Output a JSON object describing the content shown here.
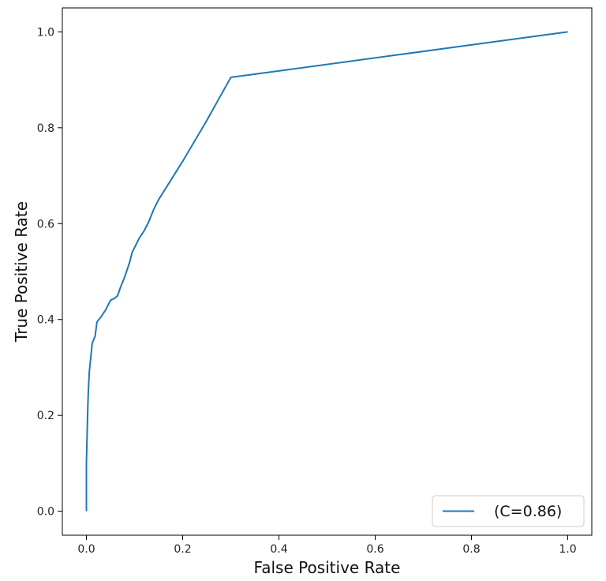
{
  "chart_data": {
    "type": "line",
    "xlabel": "False Positive Rate",
    "ylabel": "True Positive Rate",
    "xlim": [
      -0.05,
      1.05
    ],
    "ylim": [
      -0.05,
      1.05
    ],
    "x_ticks": [
      0.0,
      0.2,
      0.4,
      0.6,
      0.8,
      1.0
    ],
    "y_ticks": [
      0.0,
      0.2,
      0.4,
      0.6,
      0.8,
      1.0
    ],
    "x_tick_labels": [
      "0.0",
      "0.2",
      "0.4",
      "0.6",
      "0.8",
      "1.0"
    ],
    "y_tick_labels": [
      "0.0",
      "0.2",
      "0.4",
      "0.6",
      "0.8",
      "1.0"
    ],
    "grid": false,
    "legend_position": "lower-right",
    "series": [
      {
        "name": "(C=0.86)",
        "color": "#1f77b4",
        "x": [
          0.0,
          0.0,
          0.001,
          0.002,
          0.003,
          0.004,
          0.005,
          0.006,
          0.008,
          0.01,
          0.012,
          0.014,
          0.016,
          0.018,
          0.02,
          0.022,
          0.03,
          0.04,
          0.05,
          0.06,
          0.065,
          0.07,
          0.08,
          0.09,
          0.095,
          0.1,
          0.11,
          0.12,
          0.13,
          0.14,
          0.15,
          0.2,
          0.25,
          0.3,
          1.0
        ],
        "y": [
          0.0,
          0.1,
          0.14,
          0.18,
          0.22,
          0.25,
          0.27,
          0.29,
          0.31,
          0.33,
          0.35,
          0.355,
          0.36,
          0.365,
          0.38,
          0.395,
          0.405,
          0.42,
          0.44,
          0.445,
          0.45,
          0.465,
          0.49,
          0.52,
          0.54,
          0.55,
          0.57,
          0.585,
          0.605,
          0.63,
          0.65,
          0.73,
          0.815,
          0.905,
          1.0
        ]
      }
    ]
  }
}
